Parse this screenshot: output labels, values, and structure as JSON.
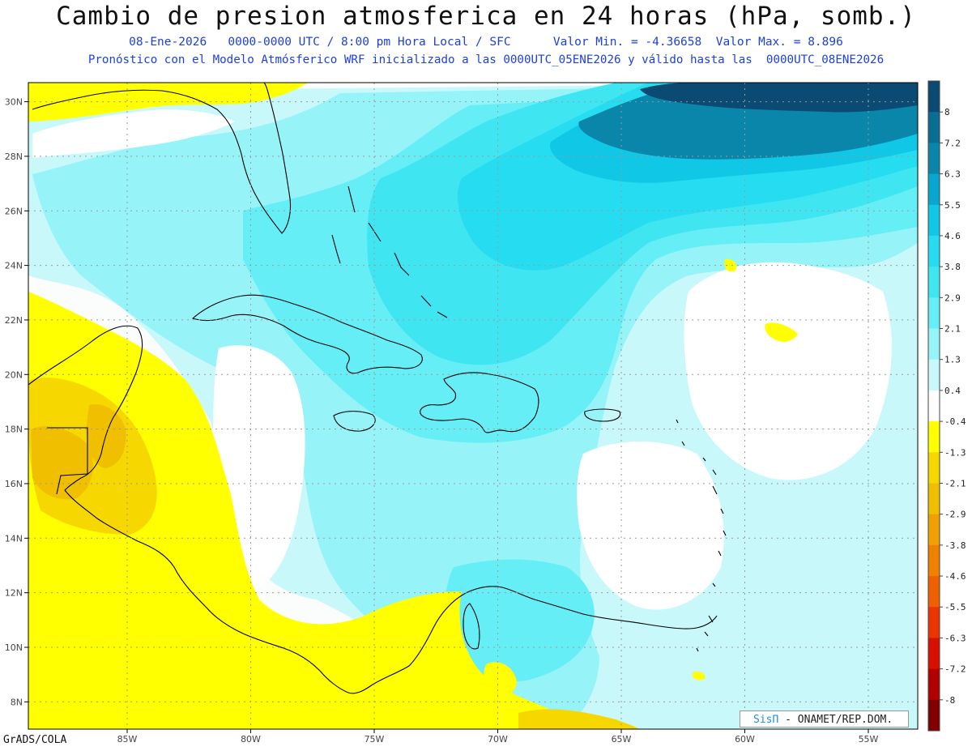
{
  "title": "Cambio de presion atmosferica en 24 horas (hPa, somb.)",
  "subtitle1": "08-Ene-2026   0000-0000 UTC / 8:00 pm Hora Local / SFC      Valor Min. = -4.36658  Valor Max. = 8.896",
  "subtitle2": "Pronóstico con el Modelo Atmósferico WRF inicializado a las 0000UTC_05ENE2026 y válido hasta las  0000UTC_08ENE2026",
  "footer_left": "GrADS/COLA",
  "credit": {
    "logo": "SisΠ",
    "text": " - ONAMET/REP.DOM."
  },
  "map": {
    "lon_range": [
      -89,
      -53
    ],
    "lat_range": [
      7,
      30.7
    ],
    "lon_ticks": [
      "85W",
      "80W",
      "75W",
      "70W",
      "65W",
      "60W",
      "55W"
    ],
    "lat_ticks": [
      "30N",
      "28N",
      "26N",
      "24N",
      "22N",
      "20N",
      "18N",
      "16N",
      "14N",
      "12N",
      "10N",
      "8N"
    ]
  },
  "colorbar": {
    "labels": [
      "8",
      "7.2",
      "6.3",
      "5.5",
      "4.6",
      "3.8",
      "2.9",
      "2.1",
      "1.3",
      "0.4",
      "-0.4",
      "-1.3",
      "-2.1",
      "-2.9",
      "-3.8",
      "-4.6",
      "-5.5",
      "-6.3",
      "-7.2",
      "-8"
    ],
    "colors": [
      "#0b4a73",
      "#0a6d92",
      "#0a86aa",
      "#08a7cf",
      "#11c7e6",
      "#26dcf0",
      "#3fe6f2",
      "#66eef6",
      "#96f4f8",
      "#c9f8fa",
      "#ffffff",
      "#ffff00",
      "#f6d800",
      "#f0c000",
      "#f0a000",
      "#f08000",
      "#ee6000",
      "#ea3500",
      "#d81000",
      "#b00000",
      "#800000"
    ]
  }
}
